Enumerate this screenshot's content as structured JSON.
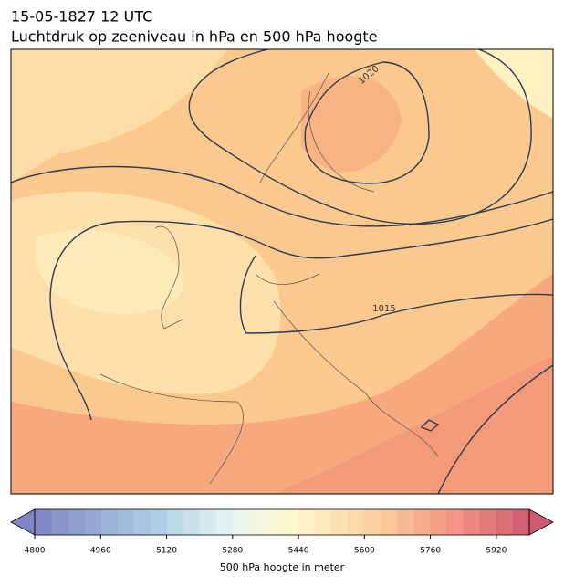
{
  "title": [
    "15-05-1827 12 UTC",
    "Luchtdruk op zeeniveau in hPa en 500 hPa hoogte"
  ],
  "map": {
    "isobar_labels": [
      "1020",
      "1015"
    ]
  },
  "colorbar": {
    "label": "500 hPa hoogte in meter",
    "lim": [
      4800,
      6000
    ],
    "ticks": [
      4800,
      4960,
      5120,
      5280,
      5440,
      5600,
      5760,
      5920
    ]
  }
}
